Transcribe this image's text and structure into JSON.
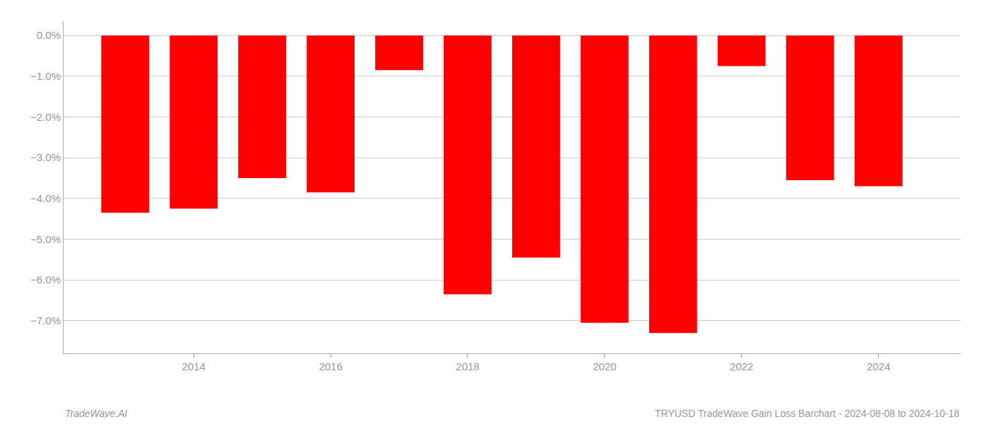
{
  "chart_data": {
    "type": "bar",
    "x": [
      2013,
      2014,
      2015,
      2016,
      2017,
      2018,
      2019,
      2020,
      2021,
      2022,
      2023,
      2024
    ],
    "values": [
      -4.35,
      -4.25,
      -3.5,
      -3.85,
      -0.85,
      -6.35,
      -5.45,
      -7.05,
      -7.3,
      -0.75,
      -3.55,
      -3.7
    ],
    "color": "#ff0000",
    "xlim": [
      2012.1,
      2025.2
    ],
    "xticks": [
      2014,
      2016,
      2018,
      2020,
      2022,
      2024
    ],
    "ylim": [
      -7.8,
      0.35
    ],
    "yticks": [
      {
        "value": 0.0,
        "label": "0.0%"
      },
      {
        "value": -1.0,
        "label": "−1.0%"
      },
      {
        "value": -2.0,
        "label": "−2.0%"
      },
      {
        "value": -3.0,
        "label": "−3.0%"
      },
      {
        "value": -4.0,
        "label": "−4.0%"
      },
      {
        "value": -5.0,
        "label": "−5.0%"
      },
      {
        "value": -6.0,
        "label": "−6.0%"
      },
      {
        "value": -7.0,
        "label": "−7.0%"
      }
    ],
    "grid": true,
    "annotations": [
      "TradeWave.AI",
      "TRYUSD TradeWave Gain Loss Barchart - 2024-08-08 to 2024-10-18"
    ]
  }
}
